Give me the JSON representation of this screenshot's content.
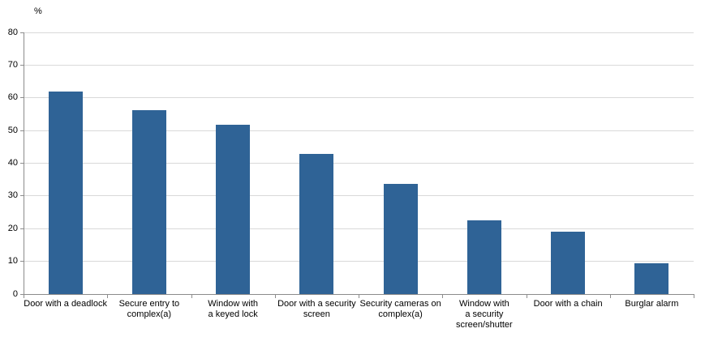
{
  "chart_data": {
    "type": "bar",
    "title": "",
    "xlabel": "",
    "ylabel": "%",
    "categories": [
      "Door with a deadlock",
      "Secure entry to\ncomplex(a)",
      "Window with\na keyed lock",
      "Door with a security\nscreen",
      "Security cameras on\ncomplex(a)",
      "Window with\na security\nscreen/shutter",
      "Door with a chain",
      "Burglar alarm"
    ],
    "values": [
      62,
      56.3,
      51.7,
      42.8,
      33.8,
      22.6,
      19.1,
      9.4
    ],
    "ylim": [
      0,
      80
    ],
    "yticks": [
      0,
      10,
      20,
      30,
      40,
      50,
      60,
      70,
      80
    ],
    "grid": true,
    "legend": "none",
    "bar_color": "#2f6396",
    "gridline_color": "#d9d9d9",
    "axis_color": "#8c8c8c",
    "text_color": "#000000"
  }
}
